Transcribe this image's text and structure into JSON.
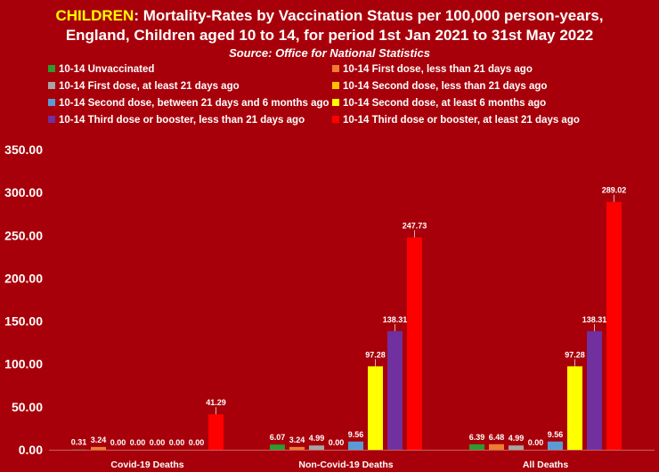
{
  "title": {
    "highlight": "CHILDREN",
    "line1_rest": ": Mortality-Rates by Vaccination Status per 100,000 person-years,",
    "line2": "England, Children aged 10 to 14, for period 1st Jan 2021 to 31st May 2022",
    "subtitle": "Source: Office for National Statistics"
  },
  "chart_data": {
    "type": "bar",
    "title": "CHILDREN: Mortality-Rates by Vaccination Status per 100,000 person-years, England, Children aged 10 to 14, for period 1st Jan 2021 to 31st May 2022",
    "subtitle": "Source: Office for National Statistics",
    "xlabel": "",
    "ylabel": "",
    "ylim": [
      0,
      350
    ],
    "yticks": [
      "0.00",
      "50.00",
      "100.00",
      "150.00",
      "200.00",
      "250.00",
      "300.00",
      "350.00"
    ],
    "grid": false,
    "legend_position": "top",
    "categories": [
      "Covid-19 Deaths",
      "Non-Covid-19 Deaths",
      "All Deaths"
    ],
    "series": [
      {
        "name": "10-14 Unvaccinated",
        "color": "#2e9a30",
        "values": [
          0.31,
          6.07,
          6.39
        ]
      },
      {
        "name": "10-14 First dose, less than 21 days ago",
        "color": "#ed7d31",
        "values": [
          3.24,
          3.24,
          6.48
        ]
      },
      {
        "name": "10-14 First dose, at least 21 days ago",
        "color": "#a5a5a5",
        "values": [
          0.0,
          4.99,
          4.99
        ]
      },
      {
        "name": "10-14 Second dose, less than 21 days ago",
        "color": "#ffc000",
        "values": [
          0.0,
          0.0,
          0.0
        ]
      },
      {
        "name": "10-14 Second dose, between 21 days and 6 months ago",
        "color": "#5b9bd5",
        "values": [
          0.0,
          9.56,
          9.56
        ]
      },
      {
        "name": "10-14 Second dose, at least 6 months ago",
        "color": "#ffff00",
        "values": [
          0.0,
          97.28,
          97.28
        ]
      },
      {
        "name": "10-14 Third dose or booster, less than 21 days ago",
        "color": "#7030a0",
        "values": [
          0.0,
          138.31,
          138.31
        ]
      },
      {
        "name": "10-14 Third dose or booster, at least 21 days ago",
        "color": "#ff0000",
        "values": [
          41.29,
          247.73,
          289.02
        ]
      }
    ]
  }
}
